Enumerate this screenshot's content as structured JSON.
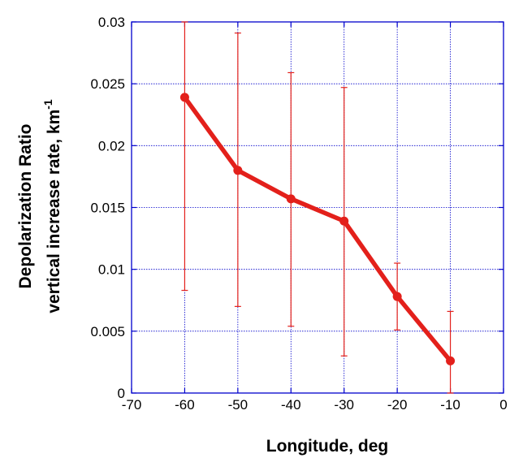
{
  "chart_data": {
    "type": "line",
    "title": "",
    "xlabel": "Longitude, deg",
    "ylabel_line1": "Depolarization Ratio",
    "ylabel_line2": "vertical increase rate, km",
    "ylabel_superscript": "-1",
    "xlim": [
      -70,
      0
    ],
    "ylim": [
      0,
      0.03
    ],
    "xticks": [
      -70,
      -60,
      -50,
      -40,
      -30,
      -20,
      -10,
      0
    ],
    "xtick_labels": [
      "-70",
      "-60",
      "-50",
      "-40",
      "-30",
      "-20",
      "-10",
      "0"
    ],
    "yticks": [
      0,
      0.005,
      0.01,
      0.015,
      0.02,
      0.025,
      0.03
    ],
    "ytick_labels": [
      "0",
      "0.005",
      "0.01",
      "0.015",
      "0.02",
      "0.025",
      "0.03"
    ],
    "grid": true,
    "grid_color": "#0000cc",
    "axis_color": "#0000cc",
    "series": [
      {
        "color": "#e3201b",
        "x": [
          -60,
          -50,
          -40,
          -30,
          -20,
          -10
        ],
        "y": [
          0.0239,
          0.018,
          0.0157,
          0.0139,
          0.0078,
          0.0026
        ],
        "err_low": [
          0.0083,
          0.007,
          0.0054,
          0.003,
          0.0051,
          0.0
        ],
        "err_high": [
          0.03,
          0.0291,
          0.0259,
          0.0247,
          0.0105,
          0.0066
        ]
      }
    ]
  }
}
